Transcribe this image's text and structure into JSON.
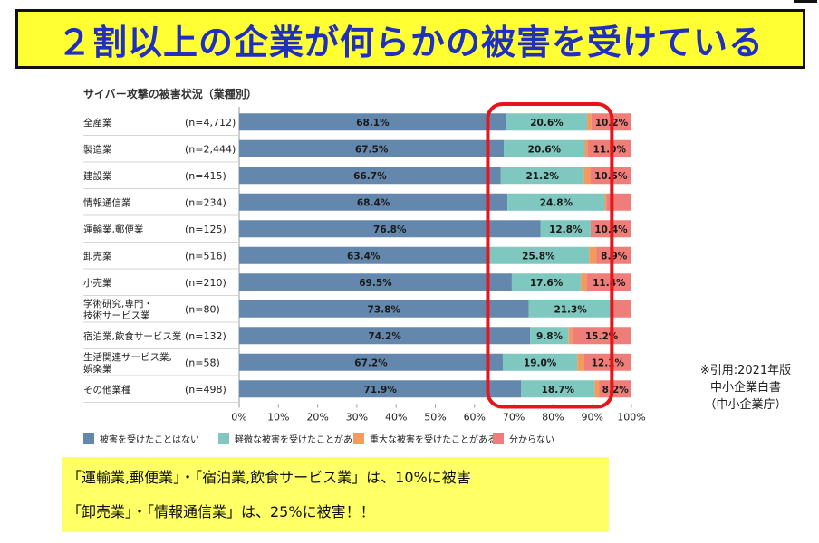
{
  "headline": "２割以上の企業が何らかの被害を受けている",
  "source": [
    "※引用:2021年版",
    "中小企業白書",
    "（中小企業庁）"
  ],
  "summary": [
    "「運輸業,郵便業」・「宿泊業,飲食サービス業」は、10%に被害",
    "「卸売業」・「情報通信業」は、25%に被害！！"
  ],
  "colors": {
    "headline_bg": "#ffff33",
    "headline_text": "#1f2fbf",
    "summary_bg": "#ffff66",
    "highlight_outline": "#e8141c"
  },
  "chart_data": {
    "type": "bar",
    "orientation": "horizontal",
    "stacked": true,
    "title": "サイバー攻撃の被害状況（業種別）",
    "categories": [
      "全産業",
      "製造業",
      "建設業",
      "情報通信業",
      "運輸業,郵便業",
      "卸売業",
      "小売業",
      "学術研究,専門・\n技術サービス業",
      "宿泊業,飲食サービス業",
      "生活関連サービス業,\n娯楽業",
      "その他業種"
    ],
    "sample_sizes": [
      "(n=4,712)",
      "(n=2,444)",
      "(n=415)",
      "(n=234)",
      "(n=125)",
      "(n=516)",
      "(n=210)",
      "(n=80)",
      "(n=132)",
      "(n=58)",
      "(n=498)"
    ],
    "series": [
      {
        "name": "被害を受けたことはない",
        "color": "#6488ad",
        "values": [
          68.1,
          67.5,
          66.7,
          68.4,
          76.8,
          63.4,
          69.5,
          73.8,
          74.2,
          67.2,
          71.9
        ],
        "labels": [
          "68.1%",
          "67.5%",
          "66.7%",
          "68.4%",
          "76.8%",
          "63.4%",
          "69.5%",
          "73.8%",
          "74.2%",
          "67.2%",
          "71.9%"
        ]
      },
      {
        "name": "軽微な被害を受けたことがある",
        "color": "#7fc8bf",
        "values": [
          20.6,
          20.6,
          21.2,
          24.8,
          12.8,
          25.8,
          17.6,
          21.3,
          9.8,
          19.0,
          18.7
        ],
        "labels": [
          "20.6%",
          "20.6%",
          "21.2%",
          "24.8%",
          "12.8%",
          "25.8%",
          "17.6%",
          "21.3%",
          "9.8%",
          "19.0%",
          "18.7%"
        ]
      },
      {
        "name": "重大な被害を受けたことがある",
        "color": "#f39a5c",
        "values": [
          1.1,
          0.8,
          1.6,
          0.4,
          0.0,
          1.9,
          1.5,
          0.0,
          0.8,
          1.7,
          1.2
        ],
        "labels": [
          "",
          "",
          "",
          "",
          "",
          "",
          "",
          "",
          "",
          "",
          ""
        ]
      },
      {
        "name": "分からない",
        "color": "#ef7e7a",
        "values": [
          10.2,
          11.0,
          10.5,
          6.4,
          10.4,
          8.9,
          11.4,
          4.9,
          15.2,
          12.1,
          8.2
        ],
        "labels": [
          "10.2%",
          "11.0%",
          "10.5%",
          "",
          "10.4%",
          "8.9%",
          "11.4%",
          "",
          "15.2%",
          "12.1%",
          "8.2%"
        ]
      }
    ],
    "xlim": [
      0,
      100
    ],
    "xticks": [
      "0%",
      "10%",
      "20%",
      "30%",
      "40%",
      "50%",
      "60%",
      "70%",
      "80%",
      "90%",
      "100%"
    ],
    "legend_position": "bottom",
    "highlight_range": [
      62,
      95
    ]
  }
}
